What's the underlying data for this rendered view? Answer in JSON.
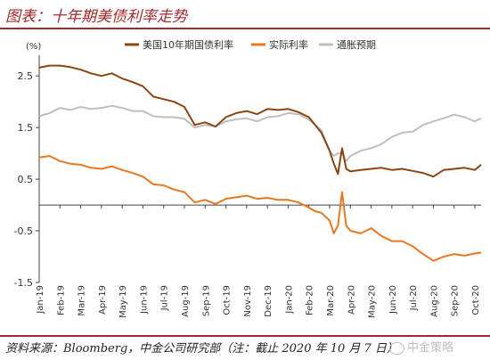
{
  "title": "图表：十年期美债利率走势",
  "source": "资料来源：Bloomberg，中金公司研究部（注：截止 2020 年 10 月 7 日）",
  "watermark": "中金策略",
  "chart_data": {
    "type": "line",
    "ylabel": "(%)",
    "ylim": [
      -1.5,
      2.9
    ],
    "yticks": [
      2.5,
      1.5,
      0.5,
      -0.5,
      -1.5
    ],
    "ytick_labels": [
      "2.5",
      "1.5",
      "0.5",
      "-0.5",
      "-1.5"
    ],
    "xtick_labels": [
      "Jan-19",
      "Feb-19",
      "Mar-19",
      "Apr-19",
      "May-19",
      "Jun-19",
      "Jul-19",
      "Aug-19",
      "Sep-19",
      "Oct-19",
      "Nov-19",
      "Dec-19",
      "Jan-20",
      "Feb-20",
      "Mar-20",
      "Apr-20",
      "May-20",
      "Jun-20",
      "Jul-20",
      "Aug-20",
      "Sep-20",
      "Oct-20"
    ],
    "x": [
      0,
      0.5,
      1,
      1.5,
      2,
      2.5,
      3,
      3.5,
      4,
      4.5,
      5,
      5.5,
      6,
      6.5,
      7,
      7.5,
      8,
      8.5,
      9,
      9.5,
      10,
      10.5,
      11,
      11.5,
      12,
      12.5,
      13,
      13.3,
      13.6,
      14,
      14.2,
      14.4,
      14.6,
      14.8,
      15,
      15.5,
      16,
      16.5,
      17,
      17.5,
      18,
      18.5,
      19,
      19.5,
      20,
      20.5,
      21,
      21.3
    ],
    "series": [
      {
        "name": "美国10年期国债利率",
        "color": "#8b4513",
        "values": [
          2.66,
          2.7,
          2.7,
          2.67,
          2.62,
          2.55,
          2.5,
          2.55,
          2.45,
          2.38,
          2.3,
          2.1,
          2.05,
          2.0,
          1.9,
          1.55,
          1.6,
          1.52,
          1.7,
          1.78,
          1.82,
          1.76,
          1.86,
          1.84,
          1.86,
          1.8,
          1.7,
          1.55,
          1.4,
          1.05,
          0.8,
          0.6,
          1.1,
          0.7,
          0.65,
          0.68,
          0.7,
          0.72,
          0.68,
          0.7,
          0.66,
          0.62,
          0.55,
          0.68,
          0.7,
          0.72,
          0.68,
          0.78
        ]
      },
      {
        "name": "实际利率",
        "color": "#e87722",
        "values": [
          0.92,
          0.95,
          0.85,
          0.8,
          0.78,
          0.72,
          0.7,
          0.75,
          0.68,
          0.62,
          0.55,
          0.4,
          0.38,
          0.3,
          0.25,
          0.05,
          0.1,
          0.02,
          0.12,
          0.15,
          0.18,
          0.12,
          0.14,
          0.1,
          0.1,
          0.05,
          -0.05,
          -0.12,
          -0.15,
          -0.3,
          -0.55,
          -0.4,
          0.25,
          -0.4,
          -0.5,
          -0.55,
          -0.45,
          -0.6,
          -0.7,
          -0.7,
          -0.8,
          -0.95,
          -1.08,
          -1.0,
          -0.95,
          -0.98,
          -0.94,
          -0.92
        ]
      },
      {
        "name": "通胀预期",
        "color": "#bfbfbf",
        "values": [
          1.72,
          1.78,
          1.88,
          1.84,
          1.9,
          1.86,
          1.88,
          1.92,
          1.88,
          1.82,
          1.82,
          1.72,
          1.7,
          1.7,
          1.67,
          1.5,
          1.55,
          1.52,
          1.62,
          1.66,
          1.68,
          1.62,
          1.7,
          1.72,
          1.78,
          1.76,
          1.65,
          1.55,
          1.45,
          1.05,
          0.95,
          1.0,
          1.0,
          0.85,
          0.95,
          1.05,
          1.1,
          1.18,
          1.32,
          1.4,
          1.42,
          1.55,
          1.62,
          1.68,
          1.75,
          1.7,
          1.62,
          1.68
        ]
      }
    ],
    "legend_position": "top",
    "grid": false
  }
}
